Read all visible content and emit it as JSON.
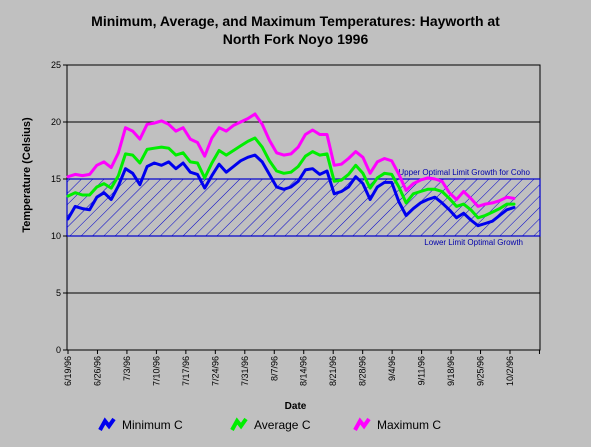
{
  "chart_data": {
    "type": "line",
    "title_line1": "Minimum, Average, and Maximum Temperatures: Hayworth at",
    "title_line2": "North Fork Noyo 1996",
    "xlabel": "Date",
    "ylabel": "Temperature (Celsius)",
    "ylim": [
      0,
      25
    ],
    "yticks": [
      0,
      5,
      10,
      15,
      20,
      25
    ],
    "grid": "horizontal",
    "x_tick_labels": [
      "6/19/96",
      "6/26/96",
      "7/3/96",
      "7/10/96",
      "7/17/96",
      "7/24/96",
      "7/31/96",
      "8/7/96",
      "8/14/96",
      "8/21/96",
      "8/28/96",
      "9/4/96",
      "9/11/96",
      "9/18/96",
      "9/25/96",
      "10/2/96"
    ],
    "band": {
      "lower": 10,
      "upper": 15,
      "upper_label": "Upper Optimal Limit Growth for Coho",
      "lower_label": "Lower Limit Optimal Growth",
      "color": "#0000cc"
    },
    "series": [
      {
        "name": "Minimum C",
        "color": "#0000ee",
        "values": [
          11.5,
          12.6,
          12.4,
          12.3,
          13.4,
          13.8,
          13.2,
          14.4,
          15.9,
          15.5,
          14.5,
          16.1,
          16.4,
          16.2,
          16.5,
          15.9,
          16.4,
          15.6,
          15.4,
          14.2,
          15.3,
          16.3,
          15.6,
          16.1,
          16.6,
          16.9,
          17.1,
          16.5,
          15.4,
          14.3,
          14.1,
          14.3,
          14.8,
          15.8,
          15.9,
          15.4,
          15.7,
          13.7,
          13.9,
          14.3,
          15.2,
          14.6,
          13.2,
          14.3,
          14.7,
          14.7,
          13.0,
          11.8,
          12.4,
          12.9,
          13.2,
          13.4,
          12.9,
          12.3,
          11.6,
          12.0,
          11.4,
          10.9,
          11.1,
          11.3,
          11.8,
          12.3,
          12.5
        ]
      },
      {
        "name": "Average C",
        "color": "#00ee00",
        "values": [
          13.5,
          13.8,
          13.6,
          13.6,
          14.3,
          14.6,
          14.2,
          15.3,
          17.2,
          17.1,
          16.4,
          17.6,
          17.7,
          17.8,
          17.7,
          17.1,
          17.3,
          16.5,
          16.4,
          15.1,
          16.4,
          17.5,
          17.1,
          17.5,
          17.9,
          18.3,
          18.6,
          17.8,
          16.6,
          15.7,
          15.5,
          15.6,
          16.1,
          17.0,
          17.4,
          17.1,
          17.2,
          14.8,
          14.9,
          15.4,
          16.2,
          15.5,
          14.2,
          15.1,
          15.5,
          15.4,
          14.3,
          12.9,
          13.7,
          13.9,
          14.1,
          14.1,
          13.9,
          13.3,
          12.6,
          12.8,
          12.3,
          11.6,
          11.8,
          12.1,
          12.4,
          12.8,
          12.8
        ]
      },
      {
        "name": "Maximum C",
        "color": "#ff00ff",
        "values": [
          15.2,
          15.4,
          15.3,
          15.4,
          16.2,
          16.5,
          16.0,
          17.3,
          19.5,
          19.2,
          18.5,
          19.8,
          19.9,
          20.1,
          19.8,
          19.2,
          19.5,
          18.5,
          18.2,
          17.0,
          18.6,
          19.5,
          19.2,
          19.7,
          20.0,
          20.3,
          20.7,
          19.8,
          18.4,
          17.3,
          17.1,
          17.2,
          17.8,
          18.9,
          19.3,
          18.9,
          18.9,
          16.2,
          16.3,
          16.8,
          17.4,
          16.9,
          15.5,
          16.5,
          16.8,
          16.6,
          15.4,
          14.0,
          14.6,
          14.9,
          15.1,
          15.0,
          14.8,
          13.8,
          13.2,
          13.9,
          13.3,
          12.6,
          12.8,
          12.9,
          13.1,
          13.4,
          13.3
        ]
      }
    ]
  }
}
